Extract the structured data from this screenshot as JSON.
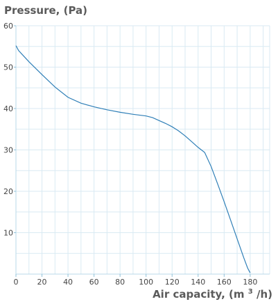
{
  "chart_data": {
    "type": "line",
    "ylabel": "Pressure, (Pa)",
    "xlabel_prefix": "Air capacity, (m",
    "xlabel_sup": "3",
    "xlabel_suffix": "/h)",
    "xlim": [
      0,
      195
    ],
    "ylim": [
      0,
      60
    ],
    "xticks": [
      0,
      20,
      40,
      60,
      80,
      100,
      120,
      140,
      160,
      180
    ],
    "yticks": [
      10,
      20,
      30,
      40,
      50,
      60
    ],
    "grid": true,
    "series": [
      {
        "color": "#2f7fb7",
        "x": [
          0,
          2,
          5,
          10,
          20,
          30,
          40,
          50,
          60,
          70,
          80,
          90,
          100,
          105,
          110,
          115,
          120,
          125,
          130,
          135,
          140,
          145,
          150,
          155,
          160,
          165,
          170,
          175,
          178,
          180
        ],
        "y": [
          55.2,
          54,
          53,
          51.3,
          48.2,
          45.2,
          42.7,
          41.3,
          40.4,
          39.7,
          39.1,
          38.6,
          38.2,
          37.8,
          37.1,
          36.4,
          35.6,
          34.6,
          33.4,
          32,
          30.6,
          29.4,
          26,
          21.8,
          17.5,
          13,
          8.5,
          4,
          1.5,
          0.3
        ]
      }
    ]
  }
}
